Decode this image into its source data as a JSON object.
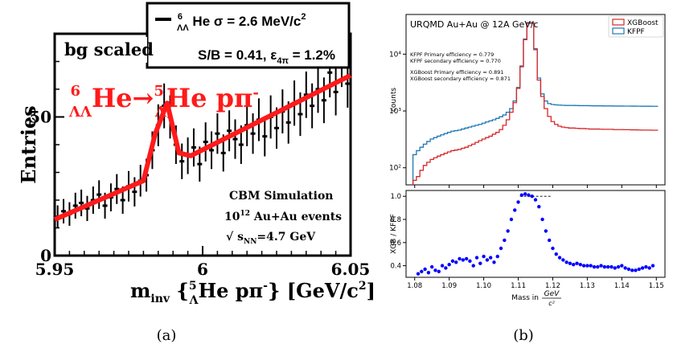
{
  "captions": {
    "a": "(a)",
    "b": "(b)"
  },
  "panel_a": {
    "legend_line": "ΛΛ6He σ = 2.6 MeV/c2",
    "legend_line_2": "S/B = 0.41, ε4π = 1.2%",
    "bg_label": "bg scaled",
    "decay_label": "ΛΛ6He→Λ5He pπ-",
    "sim_text": [
      "CBM Simulation",
      "1012 Au+Au events",
      "√sNN=4.7 GeV"
    ],
    "ylabel": "Entries",
    "xlabel": "minv {Λ5He pπ-} [GeV/c2]",
    "fit_color": "#ff1a1a",
    "point_color": "#000000"
  },
  "chart_data": [
    {
      "type": "scatter",
      "panel": "a",
      "xlim": [
        5.95,
        6.05
      ],
      "ylim": [
        0,
        80
      ],
      "xticks": [
        "5.95",
        "6",
        "6.05"
      ],
      "yticks": [
        "0",
        "50"
      ],
      "series": [
        {
          "x": [
            5.951,
            5.953,
            5.955,
            5.957,
            5.959,
            5.961,
            5.963,
            5.965,
            5.967,
            5.969,
            5.971,
            5.973,
            5.975,
            5.977,
            5.979,
            5.981,
            5.983,
            5.985,
            5.987,
            5.989,
            5.991,
            5.993,
            5.995,
            5.997,
            5.999,
            6.001,
            6.003,
            6.005,
            6.007,
            6.009,
            6.011,
            6.013,
            6.015,
            6.017,
            6.019,
            6.021,
            6.023,
            6.025,
            6.027,
            6.029,
            6.031,
            6.033,
            6.035,
            6.037,
            6.039,
            6.041,
            6.043,
            6.045,
            6.047,
            6.049
          ],
          "y": [
            14,
            16,
            15,
            18,
            19,
            17,
            20,
            22,
            18,
            21,
            24,
            20,
            25,
            23,
            27,
            29,
            38,
            47,
            54,
            50,
            40,
            34,
            36,
            39,
            33,
            41,
            38,
            44,
            37,
            45,
            42,
            40,
            47,
            44,
            49,
            43,
            50,
            46,
            52,
            48,
            55,
            51,
            58,
            54,
            60,
            56,
            66,
            59,
            70,
            62
          ]
        },
        {
          "x": [
            5.95,
            5.98,
            5.984,
            5.988,
            5.992,
            5.996,
            6.05
          ],
          "y": [
            13,
            27,
            44,
            55,
            37,
            36,
            65
          ]
        }
      ]
    },
    {
      "type": "line",
      "panel": "b-top",
      "title": "URQMD Au+Au @ 12A GeV/c",
      "ylabel": "counts",
      "yscale": "log",
      "ylim": [
        50,
        50000
      ],
      "xlim": [
        1.08,
        1.15
      ],
      "yticks": [
        "10²",
        "10³",
        "10⁴"
      ],
      "legend": "top-right",
      "annotations": [
        "KFPF Primary efficiency = 0.779",
        "KFPF secondary efficiency = 0.770",
        "XGBoost Primary efficiency = 0.891",
        "XGBoost secondary efficiency = 0.871"
      ],
      "series": [
        {
          "name": "XGBoost",
          "x": [
            1.08,
            1.081,
            1.082,
            1.083,
            1.084,
            1.085,
            1.086,
            1.087,
            1.088,
            1.089,
            1.09,
            1.091,
            1.092,
            1.093,
            1.094,
            1.095,
            1.096,
            1.097,
            1.098,
            1.099,
            1.1,
            1.101,
            1.102,
            1.103,
            1.104,
            1.105,
            1.106,
            1.107,
            1.108,
            1.109,
            1.11,
            1.111,
            1.112,
            1.113,
            1.114,
            1.115,
            1.116,
            1.117,
            1.118,
            1.119,
            1.12,
            1.121,
            1.122,
            1.123,
            1.124,
            1.125,
            1.126,
            1.127,
            1.128,
            1.129,
            1.13,
            1.131,
            1.132,
            1.133,
            1.134,
            1.135,
            1.136,
            1.137,
            1.138,
            1.139,
            1.14,
            1.141,
            1.142,
            1.143,
            1.144,
            1.145,
            1.146,
            1.147,
            1.148,
            1.149,
            1.15
          ],
          "values": [
            60,
            70,
            90,
            110,
            125,
            140,
            150,
            160,
            170,
            180,
            190,
            200,
            205,
            210,
            220,
            230,
            245,
            260,
            280,
            300,
            320,
            340,
            360,
            390,
            420,
            470,
            560,
            700,
            950,
            1400,
            2500,
            6000,
            18000,
            35000,
            35000,
            12000,
            3500,
            1800,
            1100,
            800,
            650,
            580,
            540,
            520,
            510,
            500,
            500,
            495,
            490,
            490,
            485,
            480,
            480,
            480,
            478,
            475,
            475,
            475,
            470,
            470,
            470,
            468,
            468,
            465,
            465,
            462,
            460,
            460,
            460,
            458,
            458
          ]
        },
        {
          "name": "KFPF",
          "x": [
            1.08,
            1.081,
            1.082,
            1.083,
            1.084,
            1.085,
            1.086,
            1.087,
            1.088,
            1.089,
            1.09,
            1.091,
            1.092,
            1.093,
            1.094,
            1.095,
            1.096,
            1.097,
            1.098,
            1.099,
            1.1,
            1.101,
            1.102,
            1.103,
            1.104,
            1.105,
            1.106,
            1.107,
            1.108,
            1.109,
            1.11,
            1.111,
            1.112,
            1.113,
            1.114,
            1.115,
            1.116,
            1.117,
            1.118,
            1.119,
            1.12,
            1.121,
            1.122,
            1.123,
            1.124,
            1.125,
            1.126,
            1.127,
            1.128,
            1.129,
            1.13,
            1.131,
            1.132,
            1.133,
            1.134,
            1.135,
            1.136,
            1.137,
            1.138,
            1.139,
            1.14,
            1.141,
            1.142,
            1.143,
            1.144,
            1.145,
            1.146,
            1.147,
            1.148,
            1.149,
            1.15
          ],
          "values": [
            170,
            200,
            230,
            260,
            290,
            320,
            340,
            360,
            380,
            400,
            420,
            440,
            450,
            460,
            480,
            500,
            520,
            540,
            560,
            580,
            610,
            640,
            670,
            700,
            740,
            790,
            850,
            950,
            1100,
            1500,
            2600,
            6200,
            18500,
            36000,
            36000,
            12500,
            3800,
            2000,
            1500,
            1350,
            1300,
            1280,
            1270,
            1260,
            1250,
            1250,
            1250,
            1245,
            1240,
            1240,
            1240,
            1235,
            1230,
            1230,
            1230,
            1225,
            1225,
            1225,
            1220,
            1220,
            1220,
            1218,
            1218,
            1215,
            1215,
            1212,
            1210,
            1210,
            1210,
            1208,
            1208
          ]
        }
      ]
    },
    {
      "type": "scatter",
      "panel": "b-bottom",
      "ylabel": "XGB / KFPF",
      "xlabel": "Mass in GeV/c²",
      "xlim": [
        1.0775,
        1.1525
      ],
      "ylim": [
        0.3,
        1.05
      ],
      "xticks": [
        "1.08",
        "1.09",
        "1.10",
        "1.11",
        "1.12",
        "1.13",
        "1.14",
        "1.15"
      ],
      "yticks": [
        "0.4",
        "0.6",
        "0.8",
        "1.0"
      ],
      "reference_line": 1.0,
      "series": [
        {
          "x": [
            1.081,
            1.082,
            1.083,
            1.084,
            1.085,
            1.086,
            1.087,
            1.088,
            1.089,
            1.09,
            1.091,
            1.092,
            1.093,
            1.094,
            1.095,
            1.096,
            1.097,
            1.098,
            1.099,
            1.1,
            1.101,
            1.102,
            1.103,
            1.104,
            1.105,
            1.106,
            1.107,
            1.108,
            1.109,
            1.11,
            1.111,
            1.112,
            1.113,
            1.114,
            1.115,
            1.116,
            1.117,
            1.118,
            1.119,
            1.12,
            1.121,
            1.122,
            1.123,
            1.124,
            1.125,
            1.126,
            1.127,
            1.128,
            1.129,
            1.13,
            1.131,
            1.132,
            1.133,
            1.134,
            1.135,
            1.136,
            1.137,
            1.138,
            1.139,
            1.14,
            1.141,
            1.142,
            1.143,
            1.144,
            1.145,
            1.146,
            1.147,
            1.148,
            1.149
          ],
          "values": [
            0.33,
            0.35,
            0.37,
            0.34,
            0.39,
            0.36,
            0.35,
            0.4,
            0.38,
            0.41,
            0.44,
            0.43,
            0.46,
            0.45,
            0.46,
            0.44,
            0.4,
            0.47,
            0.42,
            0.48,
            0.45,
            0.47,
            0.43,
            0.48,
            0.55,
            0.62,
            0.7,
            0.8,
            0.88,
            0.95,
            1.01,
            1.02,
            1.01,
            1.0,
            0.97,
            0.91,
            0.8,
            0.7,
            0.62,
            0.55,
            0.5,
            0.47,
            0.45,
            0.43,
            0.42,
            0.41,
            0.42,
            0.41,
            0.4,
            0.4,
            0.4,
            0.39,
            0.39,
            0.4,
            0.39,
            0.39,
            0.39,
            0.38,
            0.39,
            0.4,
            0.38,
            0.37,
            0.36,
            0.36,
            0.37,
            0.38,
            0.39,
            0.38,
            0.4
          ]
        }
      ]
    }
  ],
  "colors": {
    "xgboost": "#d62728",
    "kfpf": "#1f77b4",
    "ratio": "#0000ff"
  }
}
